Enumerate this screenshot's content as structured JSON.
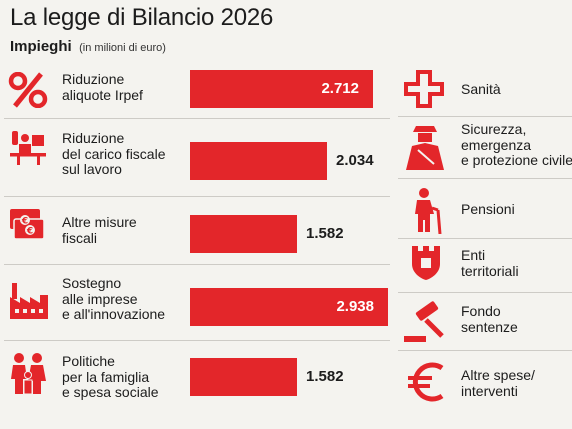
{
  "header": {
    "title": "La legge di Bilancio 2026",
    "subtitle_bold": "Impieghi",
    "subtitle_note": "(in milioni di euro)"
  },
  "chart_data": {
    "type": "bar",
    "orientation": "horizontal",
    "title": "La legge di Bilancio 2026",
    "subtitle": "Impieghi (in milioni di euro)",
    "categories": [
      "Riduzione aliquote Irpef",
      "Riduzione del carico fiscale sul lavoro",
      "Altre misure fiscali",
      "Sostegno alle imprese e all'innovazione",
      "Politiche per la famiglia e spesa sociale"
    ],
    "values": [
      2712,
      2034,
      1582,
      2938,
      1582
    ],
    "value_labels": [
      "2.712",
      "2.034",
      "1.582",
      "2.938",
      "1.582"
    ],
    "bar_color": "#e3262a",
    "label_lines": [
      [
        "Riduzione",
        "aliquote Irpef"
      ],
      [
        "Riduzione",
        "del carico fiscale",
        "sul lavoro"
      ],
      [
        "Altre misure",
        "fiscali"
      ],
      [
        "Sostegno",
        "alle imprese",
        "e all'innovazione"
      ],
      [
        "Politiche",
        "per la famiglia",
        "e spesa sociale"
      ]
    ],
    "icons": [
      "percent-icon",
      "office-worker-icon",
      "banknotes-icon",
      "factory-icon",
      "family-icon"
    ]
  },
  "right_column": {
    "items": [
      {
        "icon": "red-cross-icon",
        "lines": [
          "Sanità"
        ]
      },
      {
        "icon": "police-officer-icon",
        "lines": [
          "Sicurezza,",
          "emergenza",
          "e protezione civile"
        ]
      },
      {
        "icon": "elderly-person-icon",
        "lines": [
          "Pensioni"
        ]
      },
      {
        "icon": "municipal-crest-icon",
        "lines": [
          "Enti",
          "territoriali"
        ]
      },
      {
        "icon": "gavel-icon",
        "lines": [
          "Fondo",
          "sentenze"
        ]
      },
      {
        "icon": "euro-sign-icon",
        "lines": [
          "Altre spese/",
          "interventi"
        ]
      }
    ]
  },
  "colors": {
    "accent": "#e3262a",
    "background": "#f4f3ef",
    "text": "#1c1c1c"
  }
}
